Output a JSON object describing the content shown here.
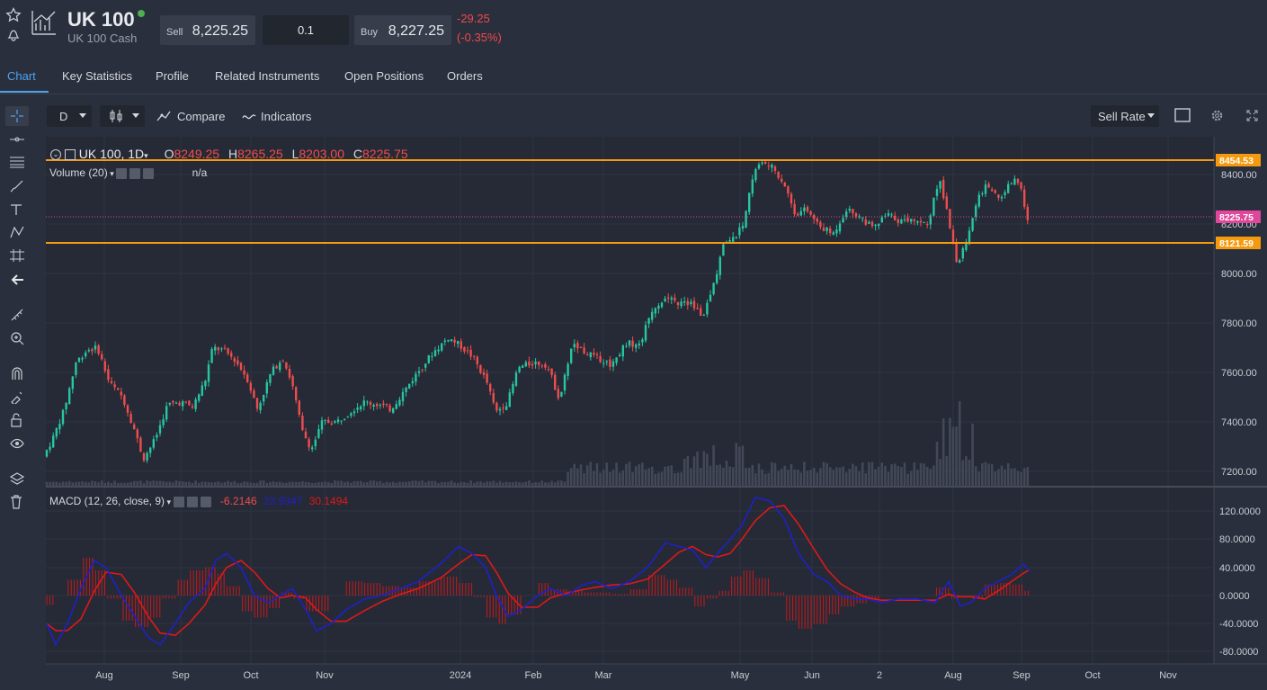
{
  "header": {
    "title": "UK 100",
    "subtitle": "UK 100 Cash",
    "sell_label": "Sell",
    "sell_value": "8,225.25",
    "quantity": "0.1",
    "buy_label": "Buy",
    "buy_value": "8,227.25",
    "change": "-29.25",
    "change_pct": "(-0.35%)"
  },
  "tabs": [
    "Chart",
    "Key Statistics",
    "Profile",
    "Related Instruments",
    "Open Positions",
    "Orders"
  ],
  "toolbar": {
    "interval": "D",
    "compare": "Compare",
    "indicators": "Indicators",
    "rate": "Sell Rate"
  },
  "legend": {
    "symbol": "UK 100, 1D",
    "o_label": "O",
    "o": "8249.25",
    "h_label": "H",
    "h": "8265.25",
    "l_label": "L",
    "l": "8203.00",
    "c_label": "C",
    "c": "8225.75",
    "volume": "Volume (20)",
    "volume_val": "n/a",
    "macd": "MACD (12, 26, close, 9)",
    "macd_hist": "-6.2146",
    "macd_line": "23.9347",
    "macd_signal": "30.1494"
  },
  "price_axis": [
    "8400.00",
    "8200.00",
    "8000.00",
    "7800.00",
    "7600.00",
    "7400.00",
    "7200.00"
  ],
  "price_tags": {
    "upper": "8454.53",
    "current": "8225.75",
    "lower": "8121.59"
  },
  "macd_axis": [
    "120.0000",
    "80.0000",
    "40.0000",
    "0.0000",
    "-40.0000",
    "-80.0000"
  ],
  "time_axis": [
    "Aug",
    "Sep",
    "Oct",
    "Nov",
    "2024",
    "Feb",
    "Mar",
    "May",
    "Jun",
    "2",
    "Aug",
    "Sep",
    "Oct",
    "Nov"
  ],
  "colors": {
    "up": "#26c6a0",
    "down": "#ef4d4d",
    "level": "#f59a0e",
    "current": "#e0469a",
    "macd": "#2020c8",
    "signal": "#e01818"
  }
}
